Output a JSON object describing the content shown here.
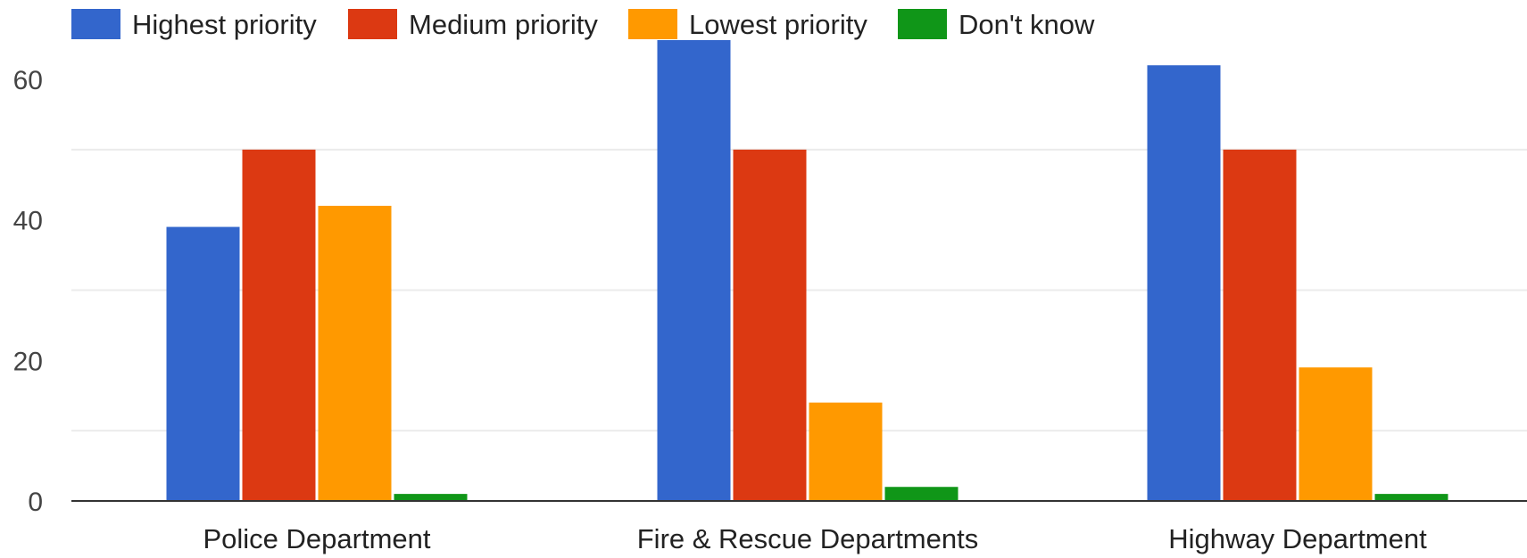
{
  "chart_data": {
    "type": "bar",
    "title": "",
    "xlabel": "",
    "ylabel": "",
    "categories": [
      "Police Department",
      "Fire & Rescue Departments",
      "Highway Department"
    ],
    "series": [
      {
        "name": "Highest priority",
        "color": "#3366CC",
        "values": [
          39,
          66,
          62
        ]
      },
      {
        "name": "Medium priority",
        "color": "#DC3912",
        "values": [
          50,
          50,
          50
        ]
      },
      {
        "name": "Lowest priority",
        "color": "#FF9900",
        "values": [
          42,
          14,
          19
        ]
      },
      {
        "name": "Don't know",
        "color": "#109618",
        "values": [
          1,
          2,
          1
        ]
      }
    ],
    "ylim": [
      0,
      66
    ],
    "yticks": [
      "0",
      "20",
      "40",
      "60"
    ],
    "legend_position": "top",
    "grid": true
  }
}
